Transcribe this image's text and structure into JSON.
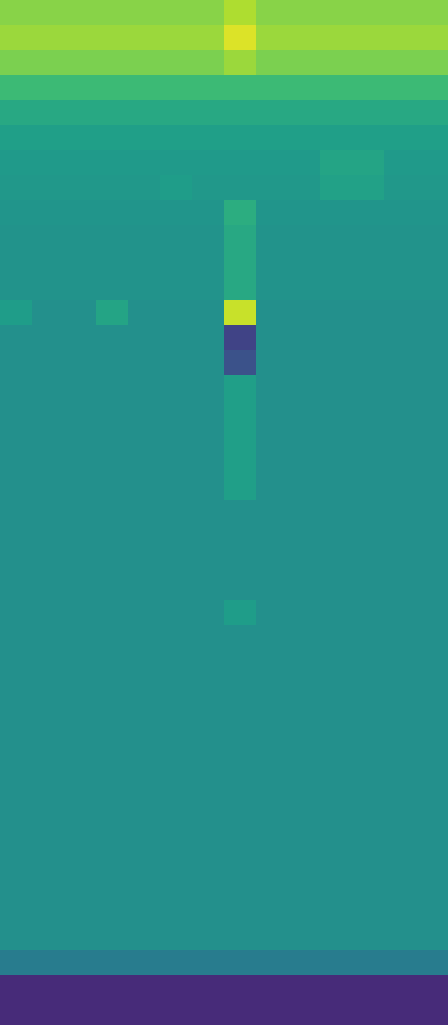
{
  "chart_data": {
    "type": "heatmap",
    "xlim": [
      0,
      14
    ],
    "ylim": [
      0,
      41
    ],
    "tick_labels": false,
    "zlim": [
      0,
      1
    ],
    "cells": [
      [
        0.82,
        0.82,
        0.82,
        0.82,
        0.82,
        0.82,
        0.82,
        0.88,
        0.82,
        0.82,
        0.82,
        0.82,
        0.82,
        0.82
      ],
      [
        0.85,
        0.85,
        0.85,
        0.85,
        0.85,
        0.85,
        0.85,
        0.95,
        0.85,
        0.85,
        0.85,
        0.85,
        0.85,
        0.85
      ],
      [
        0.8,
        0.8,
        0.8,
        0.8,
        0.8,
        0.8,
        0.8,
        0.85,
        0.8,
        0.8,
        0.8,
        0.8,
        0.8,
        0.8
      ],
      [
        0.68,
        0.68,
        0.68,
        0.68,
        0.68,
        0.68,
        0.68,
        0.68,
        0.68,
        0.68,
        0.68,
        0.68,
        0.68,
        0.68
      ],
      [
        0.6,
        0.6,
        0.6,
        0.6,
        0.6,
        0.6,
        0.6,
        0.6,
        0.6,
        0.6,
        0.6,
        0.6,
        0.6,
        0.6
      ],
      [
        0.56,
        0.56,
        0.56,
        0.56,
        0.56,
        0.56,
        0.56,
        0.56,
        0.56,
        0.56,
        0.56,
        0.56,
        0.56,
        0.56
      ],
      [
        0.54,
        0.54,
        0.54,
        0.54,
        0.54,
        0.54,
        0.54,
        0.54,
        0.54,
        0.54,
        0.58,
        0.58,
        0.54,
        0.54
      ],
      [
        0.53,
        0.53,
        0.53,
        0.53,
        0.53,
        0.55,
        0.53,
        0.53,
        0.53,
        0.53,
        0.57,
        0.57,
        0.53,
        0.53
      ],
      [
        0.52,
        0.52,
        0.52,
        0.52,
        0.52,
        0.52,
        0.52,
        0.62,
        0.52,
        0.52,
        0.52,
        0.52,
        0.52,
        0.52
      ],
      [
        0.51,
        0.51,
        0.51,
        0.51,
        0.51,
        0.51,
        0.51,
        0.6,
        0.51,
        0.51,
        0.51,
        0.51,
        0.51,
        0.51
      ],
      [
        0.51,
        0.51,
        0.51,
        0.51,
        0.51,
        0.51,
        0.51,
        0.6,
        0.51,
        0.51,
        0.51,
        0.51,
        0.51,
        0.51
      ],
      [
        0.51,
        0.51,
        0.51,
        0.51,
        0.51,
        0.51,
        0.51,
        0.6,
        0.51,
        0.51,
        0.51,
        0.51,
        0.51,
        0.51
      ],
      [
        0.55,
        0.5,
        0.5,
        0.58,
        0.5,
        0.5,
        0.5,
        0.92,
        0.5,
        0.5,
        0.5,
        0.5,
        0.5,
        0.5
      ],
      [
        0.5,
        0.5,
        0.5,
        0.5,
        0.5,
        0.5,
        0.5,
        0.2,
        0.5,
        0.5,
        0.5,
        0.5,
        0.5,
        0.5
      ],
      [
        0.5,
        0.5,
        0.5,
        0.5,
        0.5,
        0.5,
        0.5,
        0.25,
        0.5,
        0.5,
        0.5,
        0.5,
        0.5,
        0.5
      ],
      [
        0.5,
        0.5,
        0.5,
        0.5,
        0.5,
        0.5,
        0.5,
        0.56,
        0.5,
        0.5,
        0.5,
        0.5,
        0.5,
        0.5
      ],
      [
        0.5,
        0.5,
        0.5,
        0.5,
        0.5,
        0.5,
        0.5,
        0.56,
        0.5,
        0.5,
        0.5,
        0.5,
        0.5,
        0.5
      ],
      [
        0.5,
        0.5,
        0.5,
        0.5,
        0.5,
        0.5,
        0.5,
        0.56,
        0.5,
        0.5,
        0.5,
        0.5,
        0.5,
        0.5
      ],
      [
        0.5,
        0.5,
        0.5,
        0.5,
        0.5,
        0.5,
        0.5,
        0.56,
        0.5,
        0.5,
        0.5,
        0.5,
        0.5,
        0.5
      ],
      [
        0.5,
        0.5,
        0.5,
        0.5,
        0.5,
        0.5,
        0.5,
        0.56,
        0.5,
        0.5,
        0.5,
        0.5,
        0.5,
        0.5
      ],
      [
        0.5,
        0.5,
        0.5,
        0.5,
        0.5,
        0.5,
        0.5,
        0.5,
        0.5,
        0.5,
        0.5,
        0.5,
        0.5,
        0.5
      ],
      [
        0.5,
        0.5,
        0.5,
        0.5,
        0.5,
        0.5,
        0.5,
        0.5,
        0.5,
        0.5,
        0.5,
        0.5,
        0.5,
        0.5
      ],
      [
        0.5,
        0.5,
        0.5,
        0.5,
        0.5,
        0.5,
        0.5,
        0.5,
        0.5,
        0.5,
        0.5,
        0.5,
        0.5,
        0.5
      ],
      [
        0.5,
        0.5,
        0.5,
        0.5,
        0.5,
        0.5,
        0.5,
        0.5,
        0.5,
        0.5,
        0.5,
        0.5,
        0.5,
        0.5
      ],
      [
        0.5,
        0.5,
        0.5,
        0.5,
        0.5,
        0.5,
        0.5,
        0.55,
        0.5,
        0.5,
        0.5,
        0.5,
        0.5,
        0.5
      ],
      [
        0.5,
        0.5,
        0.5,
        0.5,
        0.5,
        0.5,
        0.5,
        0.5,
        0.5,
        0.5,
        0.5,
        0.5,
        0.5,
        0.5
      ],
      [
        0.5,
        0.5,
        0.5,
        0.5,
        0.5,
        0.5,
        0.5,
        0.5,
        0.5,
        0.5,
        0.5,
        0.5,
        0.5,
        0.5
      ],
      [
        0.5,
        0.5,
        0.5,
        0.5,
        0.5,
        0.5,
        0.5,
        0.5,
        0.5,
        0.5,
        0.5,
        0.5,
        0.5,
        0.5
      ],
      [
        0.5,
        0.5,
        0.5,
        0.5,
        0.5,
        0.5,
        0.5,
        0.5,
        0.5,
        0.5,
        0.5,
        0.5,
        0.5,
        0.5
      ],
      [
        0.5,
        0.5,
        0.5,
        0.5,
        0.5,
        0.5,
        0.5,
        0.5,
        0.5,
        0.5,
        0.5,
        0.5,
        0.5,
        0.5
      ],
      [
        0.5,
        0.5,
        0.5,
        0.5,
        0.5,
        0.5,
        0.5,
        0.5,
        0.5,
        0.5,
        0.5,
        0.5,
        0.5,
        0.5
      ],
      [
        0.5,
        0.5,
        0.5,
        0.5,
        0.5,
        0.5,
        0.5,
        0.5,
        0.5,
        0.5,
        0.5,
        0.5,
        0.5,
        0.5
      ],
      [
        0.5,
        0.5,
        0.5,
        0.5,
        0.5,
        0.5,
        0.5,
        0.5,
        0.5,
        0.5,
        0.5,
        0.5,
        0.5,
        0.5
      ],
      [
        0.5,
        0.5,
        0.5,
        0.5,
        0.5,
        0.5,
        0.5,
        0.5,
        0.5,
        0.5,
        0.5,
        0.5,
        0.5,
        0.5
      ],
      [
        0.5,
        0.5,
        0.5,
        0.5,
        0.5,
        0.5,
        0.5,
        0.5,
        0.5,
        0.5,
        0.5,
        0.5,
        0.5,
        0.5
      ],
      [
        0.5,
        0.5,
        0.5,
        0.5,
        0.5,
        0.5,
        0.5,
        0.5,
        0.5,
        0.5,
        0.5,
        0.5,
        0.5,
        0.5
      ],
      [
        0.5,
        0.5,
        0.5,
        0.5,
        0.5,
        0.5,
        0.5,
        0.5,
        0.5,
        0.5,
        0.5,
        0.5,
        0.5,
        0.5
      ],
      [
        0.5,
        0.5,
        0.5,
        0.5,
        0.5,
        0.5,
        0.5,
        0.5,
        0.5,
        0.5,
        0.5,
        0.5,
        0.5,
        0.5
      ],
      [
        0.42,
        0.42,
        0.42,
        0.42,
        0.42,
        0.42,
        0.42,
        0.42,
        0.42,
        0.42,
        0.42,
        0.42,
        0.42,
        0.42
      ],
      [
        0.12,
        0.12,
        0.12,
        0.12,
        0.12,
        0.12,
        0.12,
        0.12,
        0.12,
        0.12,
        0.12,
        0.12,
        0.12,
        0.12
      ],
      [
        0.12,
        0.12,
        0.12,
        0.12,
        0.12,
        0.12,
        0.12,
        0.12,
        0.12,
        0.12,
        0.12,
        0.12,
        0.12,
        0.12
      ]
    ]
  }
}
